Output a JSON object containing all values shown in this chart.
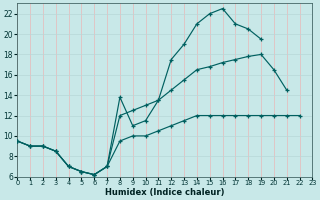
{
  "bg_color": "#c8e8e8",
  "grid_color_vert": "#e8b8b8",
  "grid_color_horiz": "#b8d8d8",
  "line_color": "#006060",
  "xlabel": "Humidex (Indice chaleur)",
  "xlim": [
    0,
    23
  ],
  "ylim": [
    6,
    23
  ],
  "xticks": [
    0,
    1,
    2,
    3,
    4,
    5,
    6,
    7,
    8,
    9,
    10,
    11,
    12,
    13,
    14,
    15,
    16,
    17,
    18,
    19,
    20,
    21,
    22,
    23
  ],
  "yticks": [
    6,
    8,
    10,
    12,
    14,
    16,
    18,
    20,
    22
  ],
  "curve1_x": [
    0,
    1,
    2,
    3,
    4,
    5,
    6,
    7,
    8,
    9,
    10,
    11,
    12,
    13,
    14,
    15,
    16,
    17,
    18,
    19
  ],
  "curve1_y": [
    9.5,
    9.0,
    9.0,
    8.5,
    7.0,
    6.5,
    6.2,
    7.0,
    13.8,
    11.0,
    11.5,
    13.5,
    17.5,
    19.0,
    21.0,
    22.0,
    22.5,
    21.0,
    20.5,
    19.5
  ],
  "curve2_x": [
    0,
    1,
    2,
    3,
    4,
    5,
    6,
    7,
    8,
    9,
    10,
    11,
    12,
    13,
    14,
    15,
    16,
    17,
    18,
    19,
    20,
    21
  ],
  "curve2_y": [
    9.5,
    9.0,
    9.0,
    8.5,
    7.0,
    6.5,
    6.2,
    7.0,
    12.0,
    12.5,
    13.0,
    13.5,
    14.5,
    15.5,
    16.5,
    16.8,
    17.2,
    17.5,
    17.8,
    18.0,
    16.5,
    14.5
  ],
  "curve3_x": [
    0,
    1,
    2,
    3,
    4,
    5,
    6,
    7,
    8,
    9,
    10,
    11,
    12,
    13,
    14,
    15,
    16,
    17,
    18,
    19,
    20,
    21,
    22
  ],
  "curve3_y": [
    9.5,
    9.0,
    9.0,
    8.5,
    7.0,
    6.5,
    6.2,
    7.0,
    9.5,
    10.0,
    10.0,
    10.5,
    11.0,
    11.5,
    12.0,
    12.0,
    12.0,
    12.0,
    12.0,
    12.0,
    12.0,
    12.0,
    12.0
  ]
}
